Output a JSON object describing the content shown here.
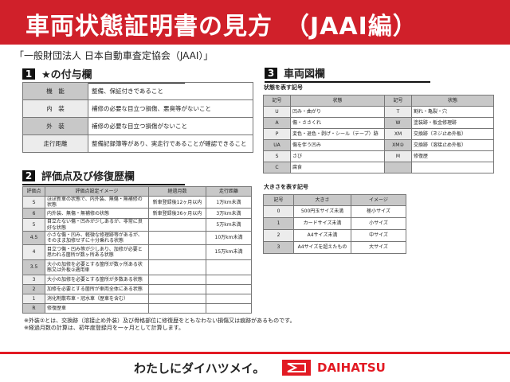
{
  "header": {
    "title": "車両状態証明書の見方　（JAAI編）"
  },
  "organization": "「一般財団法人 日本自動車査定協会（JAAI）」",
  "section1": {
    "number": "1",
    "title": "★の付与欄",
    "rows": [
      {
        "label": "機　能",
        "text": "整備、保証付きであること"
      },
      {
        "label": "内　装",
        "text": "補修の必要な目立つ損傷、悪臭等がないこと"
      },
      {
        "label": "外　装",
        "text": "補修の必要な目立つ損傷がないこと"
      },
      {
        "label": "走行距離",
        "text": "整備記録簿等があり、実走行であることが確認できること"
      }
    ]
  },
  "section2": {
    "number": "2",
    "title": "評価点及び修復歴欄",
    "headers": [
      "評価点",
      "評価点設定イメージ",
      "経過月数",
      "走行距離"
    ],
    "rows": [
      [
        "S",
        "ほぼ新車の状態で、内外装、無傷・無補修の状態",
        "新車登録後12ヶ月以内",
        "1万km未満"
      ],
      [
        "6",
        "内外装、無傷・無補修の状態",
        "新車登録後36ヶ月以内",
        "3万km未満"
      ],
      [
        "5",
        "目立たない傷・凹みが少しあるが、非常に良好な状態",
        "",
        "5万km未満"
      ],
      [
        "4.5",
        "小さな傷・凹み、軽微な修理跡等があるが、そのまま加修せずに十分乗れる状態",
        "",
        "10万km未満"
      ],
      [
        "4",
        "目立つ傷・凹み等が少しあり、加修が必要と思われる箇所が数ヶ所ある状態",
        "",
        "15万km未満"
      ],
      [
        "3.5",
        "大小の加修を必要とする箇所が数ヶ所ある状態又は外板②適用車",
        "",
        ""
      ],
      [
        "3",
        "大小の加修を必要とする箇所が多数ある状態",
        "",
        ""
      ],
      [
        "2",
        "加修を必要とする箇所が車両全体にある状態",
        "",
        ""
      ],
      [
        "1",
        "消化剤散布車・冠水車（歴車を含む）",
        "",
        ""
      ],
      [
        "R",
        "修復歴車",
        "",
        ""
      ]
    ]
  },
  "notes": [
    "※外装②とは、交換跡（溶接止め外装）及び骨格部位に修復歴をともなわない損傷又は痕跡があるものです。",
    "※経過月数の計算は、初年度登録月を一ヶ月として計算します。"
  ],
  "section3": {
    "number": "3",
    "title": "車両図欄",
    "state_title": "状態を表す記号",
    "state_headers": [
      "記号",
      "状態",
      "記号",
      "状態"
    ],
    "state_rows": [
      [
        "U",
        "凹み・曲がり",
        "T",
        "割れ・亀裂・穴"
      ],
      [
        "A",
        "傷・ささくれ",
        "W",
        "塗装跡・板金修理跡"
      ],
      [
        "P",
        "変色・退色・剥げ・シール（テープ）跡",
        "XM",
        "交換跡（ネジ止め外板）"
      ],
      [
        "UA",
        "傷を伴う凹み",
        "XM②",
        "交換跡（溶接止め外板）"
      ],
      [
        "S",
        "さび",
        "M",
        "修復歴"
      ],
      [
        "C",
        "腐食",
        "",
        ""
      ]
    ],
    "size_title": "大きさを表す記号",
    "size_headers": [
      "記号",
      "大きさ",
      "イメージ"
    ],
    "size_rows": [
      [
        "0",
        "500円玉サイズ未満",
        "極小サイズ"
      ],
      [
        "1",
        "カードサイズ未満",
        "小サイズ"
      ],
      [
        "2",
        "A4サイズ未満",
        "中サイズ"
      ],
      [
        "3",
        "A4サイズを超えたもの",
        "大サイズ"
      ]
    ]
  },
  "footer": {
    "slogan": "わたしにダイハツメイ。",
    "brand": "DAIHATSU",
    "brand_color": "#e21a23"
  }
}
